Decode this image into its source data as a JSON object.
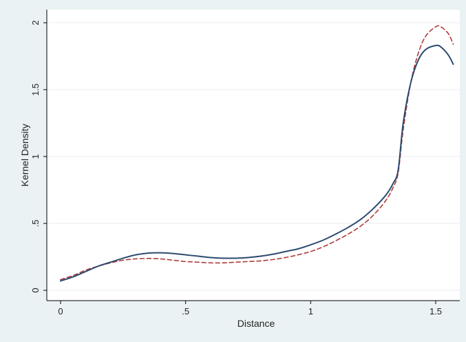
{
  "chart_data": {
    "type": "line",
    "title": "",
    "xlabel": "Distance",
    "ylabel": "Kernel Density",
    "xlim": [
      0,
      1.58
    ],
    "ylim": [
      -0.02,
      2.02
    ],
    "x_ticks": [
      {
        "value": 0,
        "label": "0"
      },
      {
        "value": 0.5,
        "label": ".5"
      },
      {
        "value": 1,
        "label": "1"
      },
      {
        "value": 1.5,
        "label": "1.5"
      }
    ],
    "y_ticks": [
      {
        "value": 0,
        "label": "0"
      },
      {
        "value": 0.5,
        "label": ".5"
      },
      {
        "value": 1,
        "label": "1"
      },
      {
        "value": 1.5,
        "label": "1.5"
      },
      {
        "value": 2,
        "label": "2"
      }
    ],
    "grid": true,
    "legend": "none",
    "series": [
      {
        "color": "#2b4a6f",
        "dash": "solid",
        "x": [
          0,
          0.05,
          0.1,
          0.15,
          0.2,
          0.25,
          0.3,
          0.35,
          0.4,
          0.45,
          0.5,
          0.55,
          0.6,
          0.65,
          0.7,
          0.75,
          0.8,
          0.85,
          0.9,
          0.95,
          1.0,
          1.05,
          1.1,
          1.15,
          1.2,
          1.25,
          1.3,
          1.33,
          1.35,
          1.37,
          1.4,
          1.43,
          1.46,
          1.5,
          1.52,
          1.55,
          1.57
        ],
        "y": [
          0.07,
          0.1,
          0.14,
          0.18,
          0.21,
          0.24,
          0.265,
          0.278,
          0.28,
          0.275,
          0.265,
          0.255,
          0.245,
          0.24,
          0.24,
          0.245,
          0.255,
          0.27,
          0.29,
          0.31,
          0.34,
          0.375,
          0.42,
          0.47,
          0.53,
          0.61,
          0.71,
          0.8,
          0.9,
          1.25,
          1.55,
          1.72,
          1.8,
          1.83,
          1.82,
          1.76,
          1.69
        ]
      },
      {
        "color": "#b03a3a",
        "dash": "dashed",
        "x": [
          0,
          0.05,
          0.1,
          0.15,
          0.2,
          0.25,
          0.3,
          0.35,
          0.4,
          0.45,
          0.5,
          0.55,
          0.6,
          0.65,
          0.7,
          0.75,
          0.8,
          0.85,
          0.9,
          0.95,
          1.0,
          1.05,
          1.1,
          1.15,
          1.2,
          1.25,
          1.3,
          1.33,
          1.35,
          1.37,
          1.4,
          1.43,
          1.46,
          1.5,
          1.52,
          1.55,
          1.57
        ],
        "y": [
          0.08,
          0.11,
          0.15,
          0.18,
          0.205,
          0.225,
          0.235,
          0.238,
          0.235,
          0.225,
          0.215,
          0.21,
          0.205,
          0.205,
          0.21,
          0.215,
          0.22,
          0.23,
          0.245,
          0.265,
          0.29,
          0.325,
          0.37,
          0.42,
          0.48,
          0.56,
          0.67,
          0.77,
          0.88,
          1.2,
          1.55,
          1.77,
          1.9,
          1.97,
          1.97,
          1.92,
          1.84
        ]
      }
    ]
  }
}
